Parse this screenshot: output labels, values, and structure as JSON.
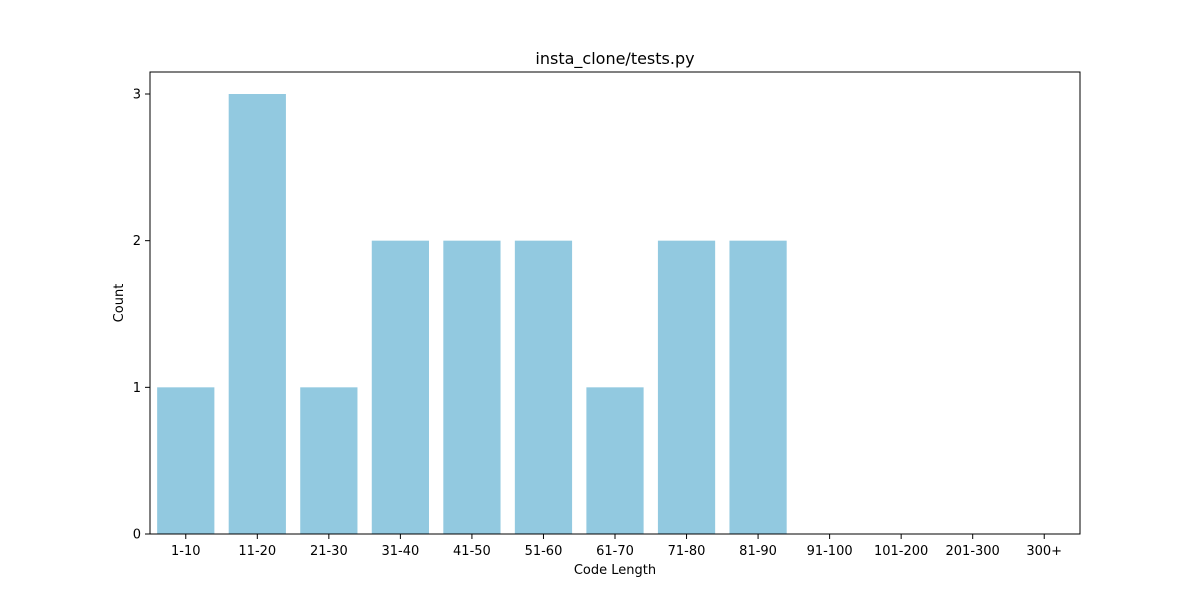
{
  "chart_data": {
    "type": "bar",
    "title": "insta_clone/tests.py",
    "xlabel": "Code Length",
    "ylabel": "Count",
    "categories": [
      "1-10",
      "11-20",
      "21-30",
      "31-40",
      "41-50",
      "51-60",
      "61-70",
      "71-80",
      "81-90",
      "91-100",
      "101-200",
      "201-300",
      "300+"
    ],
    "values": [
      1,
      3,
      1,
      2,
      2,
      2,
      1,
      2,
      2,
      0,
      0,
      0,
      0
    ],
    "ylim": [
      0,
      3.15
    ],
    "yticks": [
      0,
      1,
      2,
      3
    ],
    "bar_color": "#92c9e0",
    "grid": false,
    "legend": "none"
  }
}
